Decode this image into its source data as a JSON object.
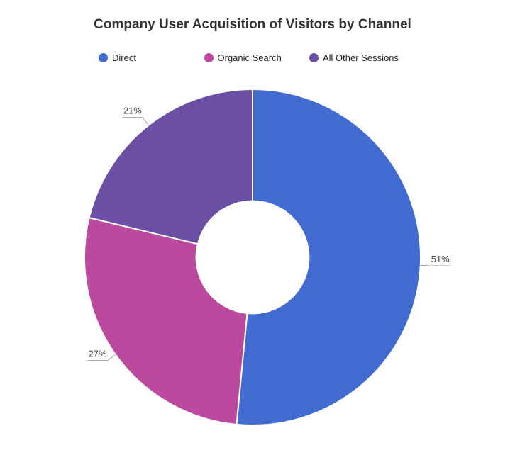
{
  "chart_data": {
    "type": "pie",
    "subtype": "donut",
    "title": "Company User Acquisition of Visitors by Channel",
    "categories": [
      "Direct",
      "Organic Search",
      "All Other Sessions"
    ],
    "values": [
      51,
      27,
      21
    ],
    "slice_labels": [
      "51%",
      "27%",
      "21%"
    ],
    "unit": "%",
    "colors": [
      "#426BD1",
      "#BB499E",
      "#6A4FA4"
    ],
    "start_angle_deg": 0,
    "direction": "clockwise",
    "pie_hole": 0.335,
    "label_position": "outside",
    "legend_position": "top",
    "title_color": "#333333",
    "legend_text_color": "#222222",
    "label_color": "#444444",
    "leader_line_color": "#9E9E9E",
    "slice_border_color": "#ffffff",
    "background": "#ffffff"
  }
}
